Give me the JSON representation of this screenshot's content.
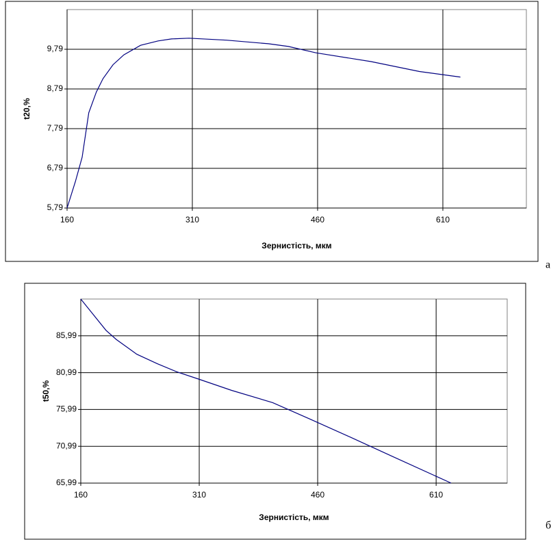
{
  "chart_data": [
    {
      "type": "line",
      "panel_label": "а",
      "xlabel": "Зернистість, мкм",
      "ylabel": "t20,%",
      "x": [
        160,
        170,
        178,
        186,
        195,
        203,
        215,
        228,
        248,
        269,
        285,
        306,
        351,
        401,
        425,
        458,
        524,
        582,
        631
      ],
      "values": [
        5.79,
        6.46,
        7.07,
        8.19,
        8.71,
        9.05,
        9.4,
        9.65,
        9.89,
        10.0,
        10.05,
        10.07,
        10.02,
        9.93,
        9.86,
        9.7,
        9.48,
        9.23,
        9.09
      ],
      "color": "#000080",
      "xlim": [
        160,
        710
      ],
      "ylim": [
        5.79,
        10.79
      ],
      "xticks": [
        160,
        310,
        460,
        610
      ],
      "yticks": [
        {
          "value": 5.79,
          "label": "5,79"
        },
        {
          "value": 6.79,
          "label": "6,79"
        },
        {
          "value": 7.79,
          "label": "7,79"
        },
        {
          "value": 8.79,
          "label": "8,79"
        },
        {
          "value": 9.79,
          "label": "9,79"
        }
      ],
      "grid": true
    },
    {
      "type": "line",
      "panel_label": "б",
      "xlabel": "Зернистість, мкм",
      "ylabel": "t50,%",
      "x": [
        160,
        192,
        205,
        231,
        257,
        282,
        308,
        351,
        403,
        450,
        502,
        555,
        629
      ],
      "values": [
        90.99,
        86.73,
        85.5,
        83.49,
        82.2,
        81.08,
        80.16,
        78.58,
        76.92,
        74.7,
        72.2,
        69.6,
        65.99
      ],
      "color": "#000080",
      "xlim": [
        160,
        700
      ],
      "ylim": [
        65.99,
        90.99
      ],
      "xticks": [
        160,
        310,
        460,
        610
      ],
      "yticks": [
        {
          "value": 65.99,
          "label": "65,99"
        },
        {
          "value": 70.99,
          "label": "70,99"
        },
        {
          "value": 75.99,
          "label": "75,99"
        },
        {
          "value": 80.99,
          "label": "80,99"
        },
        {
          "value": 85.99,
          "label": "85,99"
        }
      ],
      "grid": true
    }
  ]
}
